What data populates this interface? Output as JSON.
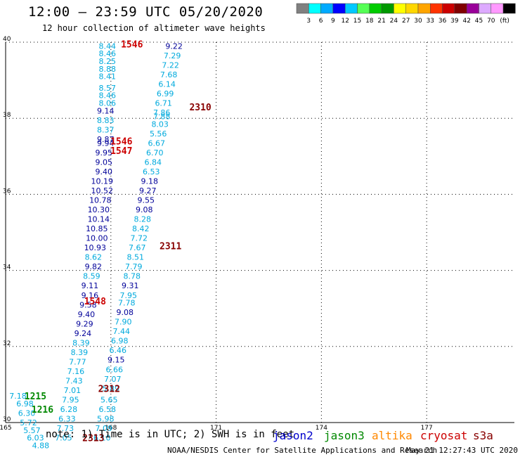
{
  "header": {
    "title": "12:00 – 23:59 UTC 05/20/2020",
    "subtitle": "12 hour collection of altimeter wave heights"
  },
  "colorbar": {
    "colors": [
      "#808080",
      "#00ffff",
      "#00aaff",
      "#0000ff",
      "#00c8ff",
      "#55ff55",
      "#00cc00",
      "#009900",
      "#ffff00",
      "#ffd700",
      "#ffa500",
      "#ff3300",
      "#cc0000",
      "#800000",
      "#990099",
      "#ddaaff",
      "#ff99ff",
      "#000000"
    ],
    "labels": [
      "3",
      "6",
      "9",
      "12",
      "15",
      "18",
      "21",
      "24",
      "27",
      "30",
      "33",
      "36",
      "39",
      "42",
      "45",
      "70",
      "(ft)"
    ]
  },
  "footer": {
    "note": "note:  1) Time is in UTC; 2) SWH is in feet",
    "sat_jason2": "jason2",
    "sat_jason3": "jason3",
    "sat_altika": "altika",
    "sat_cryosat": "cryosat",
    "sat_s3a": "s3a",
    "credit": "NOAA/NESDIS Center for Satellite Applications and Research",
    "timestamp": "May 21 12:27:43 UTC 2020"
  },
  "chart_data": {
    "type": "scatter",
    "title": "12:00 – 23:59 UTC 05/20/2020",
    "subtitle": "12 hour collection of altimeter wave heights",
    "xlim": [
      165,
      179.5
    ],
    "ylim": [
      30,
      40
    ],
    "xticks": [
      "165",
      "168",
      "171",
      "174",
      "177"
    ],
    "yticks": [
      "30",
      "32",
      "34",
      "36",
      "38",
      "40"
    ],
    "grid": true,
    "series_colors": {
      "jason2": "#0000cc",
      "jason3": "#008800",
      "altika": "#ff8800",
      "cryosat": "#880000",
      "s3a": "#cc0000",
      "swh_light": "#00aadd",
      "swh_dark": "#000099"
    },
    "wave_points": [
      {
        "lon": 167.9,
        "lat": 39.9,
        "v": "8.44",
        "c": "swh_light"
      },
      {
        "lon": 167.9,
        "lat": 39.7,
        "v": "8.46",
        "c": "swh_light"
      },
      {
        "lon": 167.9,
        "lat": 39.5,
        "v": "8.25",
        "c": "swh_light"
      },
      {
        "lon": 167.9,
        "lat": 39.3,
        "v": "8.88",
        "c": "swh_light"
      },
      {
        "lon": 167.9,
        "lat": 39.1,
        "v": "8.41",
        "c": "swh_light"
      },
      {
        "lon": 167.9,
        "lat": 38.8,
        "v": "8.57",
        "c": "swh_light"
      },
      {
        "lon": 167.9,
        "lat": 38.6,
        "v": "8.46",
        "c": "swh_light"
      },
      {
        "lon": 167.9,
        "lat": 38.4,
        "v": "8.06",
        "c": "swh_light"
      },
      {
        "lon": 167.85,
        "lat": 38.2,
        "v": "9.14",
        "c": "swh_dark"
      },
      {
        "lon": 167.85,
        "lat": 37.95,
        "v": "8.83",
        "c": "swh_light"
      },
      {
        "lon": 167.85,
        "lat": 37.7,
        "v": "8.37",
        "c": "swh_light"
      },
      {
        "lon": 167.85,
        "lat": 37.45,
        "v": "9.87",
        "c": "swh_dark"
      },
      {
        "lon": 167.85,
        "lat": 37.35,
        "v": "9.94",
        "c": "swh_dark"
      },
      {
        "lon": 167.8,
        "lat": 37.1,
        "v": "9.95",
        "c": "swh_dark"
      },
      {
        "lon": 167.8,
        "lat": 36.85,
        "v": "9.05",
        "c": "swh_dark"
      },
      {
        "lon": 167.8,
        "lat": 36.6,
        "v": "9.40",
        "c": "swh_dark"
      },
      {
        "lon": 167.75,
        "lat": 36.35,
        "v": "10.19",
        "c": "swh_dark"
      },
      {
        "lon": 167.75,
        "lat": 36.1,
        "v": "10.52",
        "c": "swh_dark"
      },
      {
        "lon": 167.7,
        "lat": 35.85,
        "v": "10.78",
        "c": "swh_dark"
      },
      {
        "lon": 167.65,
        "lat": 35.6,
        "v": "10.30",
        "c": "swh_dark"
      },
      {
        "lon": 167.65,
        "lat": 35.35,
        "v": "10.14",
        "c": "swh_dark"
      },
      {
        "lon": 167.6,
        "lat": 35.1,
        "v": "10.85",
        "c": "swh_dark"
      },
      {
        "lon": 167.6,
        "lat": 34.85,
        "v": "10.00",
        "c": "swh_dark"
      },
      {
        "lon": 167.55,
        "lat": 34.6,
        "v": "10.93",
        "c": "swh_dark"
      },
      {
        "lon": 167.5,
        "lat": 34.35,
        "v": "8.62",
        "c": "swh_light"
      },
      {
        "lon": 167.5,
        "lat": 34.1,
        "v": "9.82",
        "c": "swh_dark"
      },
      {
        "lon": 167.45,
        "lat": 33.85,
        "v": "8.59",
        "c": "swh_light"
      },
      {
        "lon": 167.4,
        "lat": 33.6,
        "v": "9.11",
        "c": "swh_dark"
      },
      {
        "lon": 167.4,
        "lat": 33.35,
        "v": "9.16",
        "c": "swh_dark"
      },
      {
        "lon": 167.35,
        "lat": 33.1,
        "v": "9.58",
        "c": "swh_dark"
      },
      {
        "lon": 167.3,
        "lat": 32.85,
        "v": "9.40",
        "c": "swh_dark"
      },
      {
        "lon": 167.25,
        "lat": 32.6,
        "v": "9.29",
        "c": "swh_dark"
      },
      {
        "lon": 167.2,
        "lat": 32.35,
        "v": "9.24",
        "c": "swh_dark"
      },
      {
        "lon": 167.15,
        "lat": 32.1,
        "v": "8.39",
        "c": "swh_light"
      },
      {
        "lon": 167.1,
        "lat": 31.85,
        "v": "8.39",
        "c": "swh_light"
      },
      {
        "lon": 167.05,
        "lat": 31.6,
        "v": "7.77",
        "c": "swh_light"
      },
      {
        "lon": 167.0,
        "lat": 31.35,
        "v": "7.16",
        "c": "swh_light"
      },
      {
        "lon": 166.95,
        "lat": 31.1,
        "v": "7.43",
        "c": "swh_light"
      },
      {
        "lon": 166.9,
        "lat": 30.85,
        "v": "7.01",
        "c": "swh_light"
      },
      {
        "lon": 166.85,
        "lat": 30.6,
        "v": "7.95",
        "c": "swh_light"
      },
      {
        "lon": 166.8,
        "lat": 30.35,
        "v": "6.28",
        "c": "swh_light"
      },
      {
        "lon": 166.75,
        "lat": 30.1,
        "v": "6.33",
        "c": "swh_light"
      },
      {
        "lon": 166.7,
        "lat": 29.85,
        "v": "7.73",
        "c": "swh_light"
      },
      {
        "lon": 166.65,
        "lat": 29.6,
        "v": "7.05",
        "c": "swh_light"
      },
      {
        "lon": 169.8,
        "lat": 39.9,
        "v": "9.22",
        "c": "swh_dark"
      },
      {
        "lon": 169.75,
        "lat": 39.65,
        "v": "7.29",
        "c": "swh_light"
      },
      {
        "lon": 169.7,
        "lat": 39.4,
        "v": "7.22",
        "c": "swh_light"
      },
      {
        "lon": 169.65,
        "lat": 39.15,
        "v": "7.68",
        "c": "swh_light"
      },
      {
        "lon": 169.6,
        "lat": 38.9,
        "v": "6.14",
        "c": "swh_light"
      },
      {
        "lon": 169.55,
        "lat": 38.65,
        "v": "6.99",
        "c": "swh_light"
      },
      {
        "lon": 169.5,
        "lat": 38.4,
        "v": "6.71",
        "c": "swh_light"
      },
      {
        "lon": 169.45,
        "lat": 38.15,
        "v": "7.86",
        "c": "swh_light"
      },
      {
        "lon": 169.45,
        "lat": 38.05,
        "v": "7.88",
        "c": "swh_light"
      },
      {
        "lon": 169.4,
        "lat": 37.85,
        "v": "8.03",
        "c": "swh_light"
      },
      {
        "lon": 169.35,
        "lat": 37.6,
        "v": "5.56",
        "c": "swh_light"
      },
      {
        "lon": 169.3,
        "lat": 37.35,
        "v": "6.67",
        "c": "swh_light"
      },
      {
        "lon": 169.25,
        "lat": 37.1,
        "v": "6.70",
        "c": "swh_light"
      },
      {
        "lon": 169.2,
        "lat": 36.85,
        "v": "6.84",
        "c": "swh_light"
      },
      {
        "lon": 169.15,
        "lat": 36.6,
        "v": "6.53",
        "c": "swh_light"
      },
      {
        "lon": 169.1,
        "lat": 36.35,
        "v": "9.18",
        "c": "swh_dark"
      },
      {
        "lon": 169.05,
        "lat": 36.1,
        "v": "9.27",
        "c": "swh_dark"
      },
      {
        "lon": 169.0,
        "lat": 35.85,
        "v": "9.55",
        "c": "swh_dark"
      },
      {
        "lon": 168.95,
        "lat": 35.6,
        "v": "9.08",
        "c": "swh_dark"
      },
      {
        "lon": 168.9,
        "lat": 35.35,
        "v": "8.28",
        "c": "swh_light"
      },
      {
        "lon": 168.85,
        "lat": 35.1,
        "v": "8.42",
        "c": "swh_light"
      },
      {
        "lon": 168.8,
        "lat": 34.85,
        "v": "7.72",
        "c": "swh_light"
      },
      {
        "lon": 168.75,
        "lat": 34.6,
        "v": "7.67",
        "c": "swh_light"
      },
      {
        "lon": 168.7,
        "lat": 34.35,
        "v": "8.51",
        "c": "swh_light"
      },
      {
        "lon": 168.65,
        "lat": 34.1,
        "v": "7.79",
        "c": "swh_light"
      },
      {
        "lon": 168.6,
        "lat": 33.85,
        "v": "8.78",
        "c": "swh_light"
      },
      {
        "lon": 168.55,
        "lat": 33.6,
        "v": "9.31",
        "c": "swh_dark"
      },
      {
        "lon": 168.5,
        "lat": 33.35,
        "v": "7.95",
        "c": "swh_light"
      },
      {
        "lon": 168.45,
        "lat": 33.15,
        "v": "7.78",
        "c": "swh_light"
      },
      {
        "lon": 168.4,
        "lat": 32.9,
        "v": "9.08",
        "c": "swh_dark"
      },
      {
        "lon": 168.35,
        "lat": 32.65,
        "v": "7.90",
        "c": "swh_light"
      },
      {
        "lon": 168.3,
        "lat": 32.4,
        "v": "7.44",
        "c": "swh_light"
      },
      {
        "lon": 168.25,
        "lat": 32.15,
        "v": "6.98",
        "c": "swh_light"
      },
      {
        "lon": 168.2,
        "lat": 31.9,
        "v": "6.46",
        "c": "swh_light"
      },
      {
        "lon": 168.15,
        "lat": 31.65,
        "v": "9.15",
        "c": "swh_dark"
      },
      {
        "lon": 168.1,
        "lat": 31.4,
        "v": "6.66",
        "c": "swh_light"
      },
      {
        "lon": 168.05,
        "lat": 31.15,
        "v": "7.07",
        "c": "swh_light"
      },
      {
        "lon": 168.0,
        "lat": 30.9,
        "v": "5.89",
        "c": "swh_light"
      },
      {
        "lon": 167.95,
        "lat": 30.6,
        "v": "5.65",
        "c": "swh_light"
      },
      {
        "lon": 167.9,
        "lat": 30.35,
        "v": "6.58",
        "c": "swh_light"
      },
      {
        "lon": 167.85,
        "lat": 30.1,
        "v": "5.98",
        "c": "swh_light"
      },
      {
        "lon": 167.8,
        "lat": 29.85,
        "v": "7.09",
        "c": "swh_light"
      },
      {
        "lon": 167.75,
        "lat": 29.6,
        "v": "6.10",
        "c": "swh_light"
      },
      {
        "lon": 165.35,
        "lat": 30.7,
        "v": "7.18",
        "c": "swh_light"
      },
      {
        "lon": 165.55,
        "lat": 30.5,
        "v": "6.98",
        "c": "swh_light"
      },
      {
        "lon": 165.6,
        "lat": 30.25,
        "v": "6.30",
        "c": "swh_light"
      },
      {
        "lon": 165.65,
        "lat": 30.0,
        "v": "5.72",
        "c": "swh_light"
      },
      {
        "lon": 165.75,
        "lat": 29.8,
        "v": "5.57",
        "c": "swh_light"
      },
      {
        "lon": 165.85,
        "lat": 29.6,
        "v": "6.03",
        "c": "swh_light"
      },
      {
        "lon": 166.0,
        "lat": 29.4,
        "v": "4.88",
        "c": "swh_light"
      }
    ],
    "time_labels": [
      {
        "lon": 168.6,
        "lat": 39.95,
        "t": "1546",
        "c": "s3a"
      },
      {
        "lon": 170.55,
        "lat": 38.3,
        "t": "2310",
        "c": "cryosat"
      },
      {
        "lon": 168.3,
        "lat": 37.4,
        "t": "1546",
        "c": "s3a"
      },
      {
        "lon": 168.3,
        "lat": 37.15,
        "t": "1547",
        "c": "s3a"
      },
      {
        "lon": 169.7,
        "lat": 34.65,
        "t": "2311",
        "c": "cryosat"
      },
      {
        "lon": 167.55,
        "lat": 33.2,
        "t": "1548",
        "c": "s3a"
      },
      {
        "lon": 167.95,
        "lat": 30.9,
        "t": "2312",
        "c": "cryosat"
      },
      {
        "lon": 165.85,
        "lat": 30.7,
        "t": "1215",
        "c": "jason3"
      },
      {
        "lon": 166.05,
        "lat": 30.35,
        "t": "1216",
        "c": "jason3"
      },
      {
        "lon": 167.5,
        "lat": 29.6,
        "t": "2313",
        "c": "cryosat"
      }
    ]
  }
}
